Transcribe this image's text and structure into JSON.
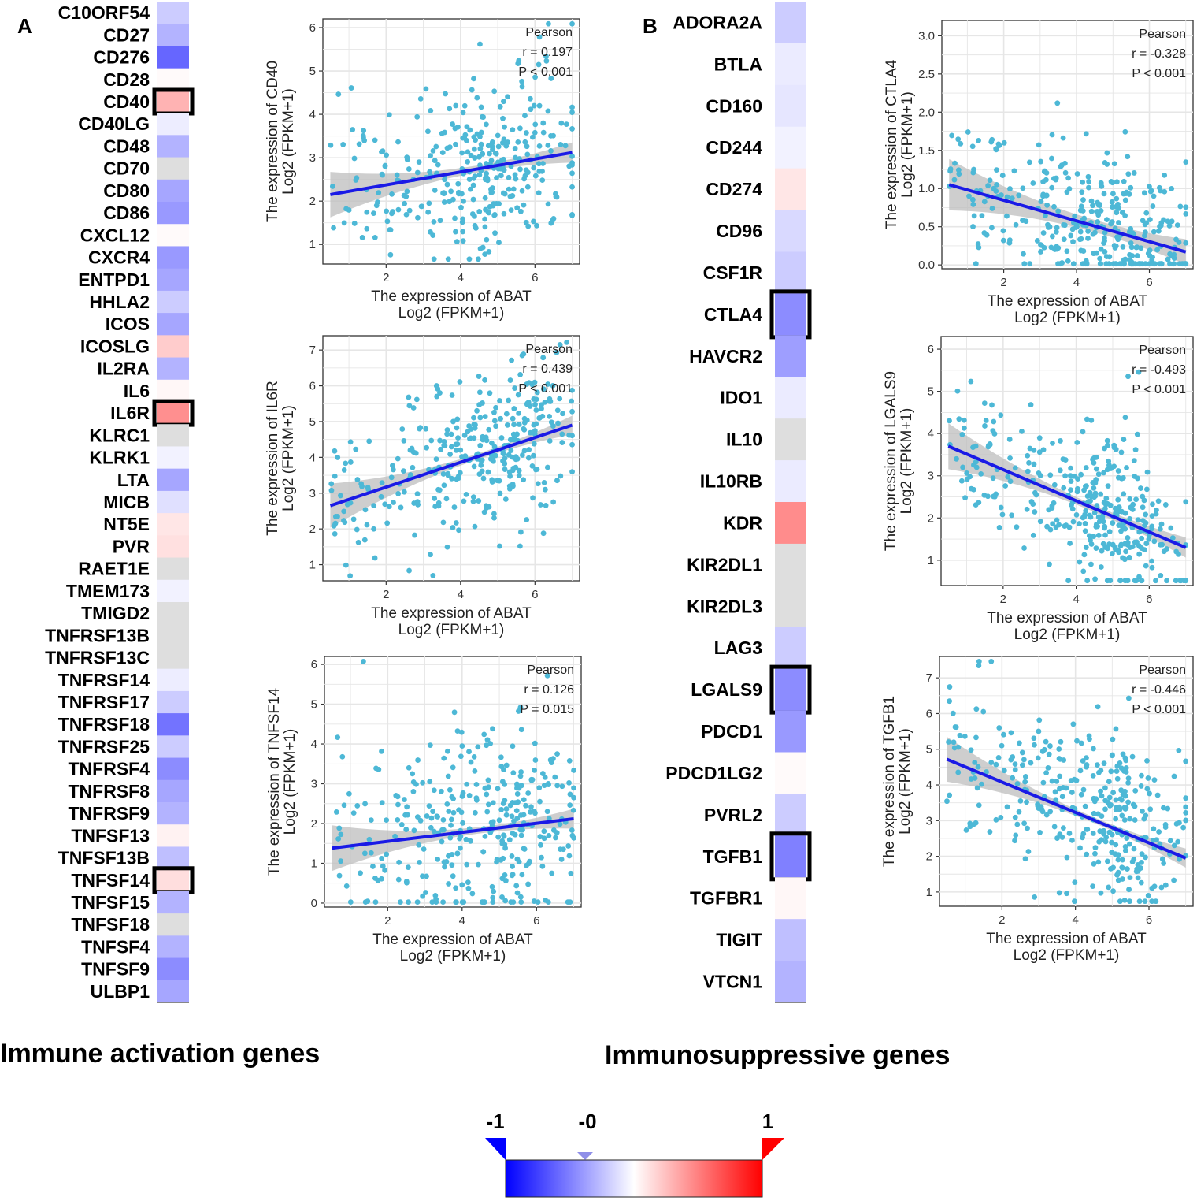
{
  "panel_a": {
    "letter": "A",
    "section_title": "Immune activation genes",
    "heatmap": {
      "genes": [
        "C10ORF54",
        "CD27",
        "CD276",
        "CD28",
        "CD40",
        "CD40LG",
        "CD48",
        "CD70",
        "CD80",
        "CD86",
        "CXCL12",
        "CXCR4",
        "ENTPD1",
        "HHLA2",
        "ICOS",
        "ICOSLG",
        "IL2RA",
        "IL6",
        "IL6R",
        "KLRC1",
        "KLRK1",
        "LTA",
        "MICB",
        "NT5E",
        "PVR",
        "RAET1E",
        "TMEM173",
        "TMIGD2",
        "TNFRSF13B",
        "TNFRSF13C",
        "TNFRSF14",
        "TNFRSF17",
        "TNFRSF18",
        "TNFRSF25",
        "TNFRSF4",
        "TNFRSF8",
        "TNFRSF9",
        "TNFSF13",
        "TNFSF13B",
        "TNFSF14",
        "TNFSF15",
        "TNFSF18",
        "TNFSF4",
        "TNFSF9",
        "ULBP1"
      ],
      "values": [
        -0.2,
        -0.3,
        -0.6,
        0.02,
        0.3,
        -0.07,
        -0.3,
        0,
        -0.35,
        -0.4,
        0.02,
        -0.4,
        -0.35,
        -0.2,
        -0.35,
        0.2,
        -0.3,
        0.03,
        0.44,
        0,
        -0.05,
        -0.35,
        -0.12,
        0.1,
        0.12,
        0,
        -0.05,
        0,
        0,
        0,
        -0.07,
        -0.2,
        -0.55,
        -0.2,
        -0.45,
        -0.35,
        -0.3,
        0.05,
        -0.25,
        0.13,
        -0.3,
        0,
        -0.3,
        -0.45,
        -0.35
      ],
      "highlighted": [
        "CD40",
        "IL6R",
        "TNFSF14"
      ]
    },
    "scatters": [
      {
        "type": "scatter",
        "gene": "CD40",
        "ylabel": "The expression of CD40",
        "ylabel_sub": "Log2 (FPKM+1)",
        "xlabel": "The expression of ABAT",
        "xlabel_sub": "Log2 (FPKM+1)",
        "method": "Pearson",
        "r_text": "r = 0.197",
        "p_text": "P < 0.001",
        "r": 0.197,
        "xlim": [
          0.3,
          7.2
        ],
        "ylim": [
          0.55,
          6.2
        ],
        "xticks": [
          2,
          4,
          6
        ],
        "yticks": [
          1,
          2,
          3,
          4,
          5,
          6
        ],
        "fit": [
          [
            0.5,
            2.15
          ],
          [
            7.0,
            3.12
          ]
        ],
        "y_center": 2.9,
        "y_sd": 0.95,
        "seed": 11,
        "color": "#4db8d6"
      },
      {
        "type": "scatter",
        "gene": "IL6R",
        "ylabel": "The expression of IL6R",
        "ylabel_sub": "Log2 (FPKM+1)",
        "xlabel": "The expression of ABAT",
        "xlabel_sub": "Log2 (FPKM+1)",
        "method": "Pearson",
        "r_text": "r = 0.439",
        "p_text": "P < 0.001",
        "r": 0.439,
        "xlim": [
          0.3,
          7.2
        ],
        "ylim": [
          0.55,
          7.4
        ],
        "xticks": [
          2,
          4,
          6
        ],
        "yticks": [
          1,
          2,
          3,
          4,
          5,
          6,
          7
        ],
        "fit": [
          [
            0.5,
            2.65
          ],
          [
            7.0,
            4.9
          ]
        ],
        "y_center": 3.9,
        "y_sd": 1.0,
        "seed": 23,
        "color": "#4db8d6"
      },
      {
        "type": "scatter",
        "gene": "TNFSF14",
        "ylabel": "The expression of TNFSF14",
        "ylabel_sub": "Log2 (FPKM+1)",
        "xlabel": "The expression of ABAT",
        "xlabel_sub": "Log2 (FPKM+1)",
        "method": "Pearson",
        "r_text": "r = 0.126",
        "p_text": "P = 0.015",
        "r": 0.126,
        "xlim": [
          0.3,
          7.2
        ],
        "ylim": [
          -0.1,
          6.2
        ],
        "xticks": [
          2,
          4,
          6
        ],
        "yticks": [
          0,
          1,
          2,
          3,
          4,
          5,
          6
        ],
        "fit": [
          [
            0.5,
            1.38
          ],
          [
            7.0,
            2.12
          ]
        ],
        "y_center": 1.8,
        "y_sd": 1.2,
        "seed": 37,
        "color": "#4db8d6"
      }
    ]
  },
  "panel_b": {
    "letter": "B",
    "section_title": "Immunosuppressive genes",
    "heatmap": {
      "genes": [
        "ADORA2A",
        "BTLA",
        "CD160",
        "CD244",
        "CD274",
        "CD96",
        "CSF1R",
        "CTLA4",
        "HAVCR2",
        "IDO1",
        "IL10",
        "IL10RB",
        "KDR",
        "KIR2DL1",
        "KIR2DL3",
        "LAG3",
        "LGALS9",
        "PDCD1",
        "PDCD1LG2",
        "PVRL2",
        "TGFB1",
        "TGFBR1",
        "TIGIT",
        "VTCN1"
      ],
      "values": [
        -0.2,
        -0.08,
        -0.1,
        -0.05,
        0.1,
        -0.15,
        -0.2,
        -0.45,
        -0.38,
        -0.08,
        0,
        -0.08,
        0.45,
        0,
        0,
        -0.2,
        -0.45,
        -0.4,
        0.02,
        -0.2,
        -0.5,
        0.03,
        -0.25,
        -0.3
      ],
      "highlighted": [
        "CTLA4",
        "LGALS9",
        "TGFB1"
      ]
    },
    "scatters": [
      {
        "type": "scatter",
        "gene": "CTLA4",
        "ylabel": "The expression of CTLA4",
        "ylabel_sub": "Log2 (FPKM+1)",
        "xlabel": "The expression of ABAT",
        "xlabel_sub": "Log2 (FPKM+1)",
        "method": "Pearson",
        "r_text": "r = -0.328",
        "p_text": "P < 0.001",
        "r": -0.328,
        "xlim": [
          0.3,
          7.2
        ],
        "ylim": [
          -0.05,
          3.2
        ],
        "xticks": [
          2,
          4,
          6
        ],
        "yticks": [
          0.0,
          0.5,
          1.0,
          1.5,
          2.0,
          2.5,
          3.0
        ],
        "ytick_labels": [
          "0.0",
          "0.5",
          "1.0",
          "1.5",
          "2.0",
          "2.5",
          "3.0"
        ],
        "fit": [
          [
            0.5,
            1.05
          ],
          [
            7.0,
            0.17
          ]
        ],
        "y_center": 0.45,
        "y_sd": 0.45,
        "seed": 41,
        "color": "#4db8d6"
      },
      {
        "type": "scatter",
        "gene": "LGALS9",
        "ylabel": "The expression of LGALS9",
        "ylabel_sub": "Log2 (FPKM+1)",
        "xlabel": "The expression of ABAT",
        "xlabel_sub": "Log2 (FPKM+1)",
        "method": "Pearson",
        "r_text": "r = -0.493",
        "p_text": "P < 0.001",
        "r": -0.493,
        "xlim": [
          0.3,
          7.2
        ],
        "ylim": [
          0.4,
          6.3
        ],
        "xticks": [
          2,
          4,
          6
        ],
        "yticks": [
          1,
          2,
          3,
          4,
          5,
          6
        ],
        "fit": [
          [
            0.5,
            3.7
          ],
          [
            7.0,
            1.3
          ]
        ],
        "y_center": 2.3,
        "y_sd": 0.9,
        "seed": 53,
        "color": "#4db8d6"
      },
      {
        "type": "scatter",
        "gene": "TGFB1",
        "ylabel": "The expression of TGFB1",
        "ylabel_sub": "Log2 (FPKM+1)",
        "xlabel": "The expression of ABAT",
        "xlabel_sub": "Log2 (FPKM+1)",
        "method": "Pearson",
        "r_text": "r = -0.446",
        "p_text": "P < 0.001",
        "r": -0.446,
        "xlim": [
          0.3,
          7.2
        ],
        "ylim": [
          0.6,
          7.6
        ],
        "xticks": [
          2,
          4,
          6
        ],
        "yticks": [
          1,
          2,
          3,
          4,
          5,
          6,
          7
        ],
        "fit": [
          [
            0.5,
            4.72
          ],
          [
            7.0,
            1.95
          ]
        ],
        "y_center": 3.0,
        "y_sd": 1.05,
        "seed": 67,
        "color": "#4db8d6"
      }
    ]
  },
  "colorbar": {
    "labels": [
      "-1",
      "-0",
      "1"
    ],
    "low_color": "#0000ff",
    "mid_color": "#ffffff",
    "high_color": "#ff0000"
  },
  "colors": {
    "point": "#4db8d6",
    "fit_line": "#1a1ae6",
    "ci_band": "#bdbdbd",
    "grid": "#e6e6e6",
    "highlight_border": "#000000"
  },
  "chart_data": [
    {
      "type": "heatmap",
      "title": "Immune activation genes",
      "categories": [
        "C10ORF54",
        "CD27",
        "CD276",
        "CD28",
        "CD40",
        "CD40LG",
        "CD48",
        "CD70",
        "CD80",
        "CD86",
        "CXCL12",
        "CXCR4",
        "ENTPD1",
        "HHLA2",
        "ICOS",
        "ICOSLG",
        "IL2RA",
        "IL6",
        "IL6R",
        "KLRC1",
        "KLRK1",
        "LTA",
        "MICB",
        "NT5E",
        "PVR",
        "RAET1E",
        "TMEM173",
        "TMIGD2",
        "TNFRSF13B",
        "TNFRSF13C",
        "TNFRSF14",
        "TNFRSF17",
        "TNFRSF18",
        "TNFRSF25",
        "TNFRSF4",
        "TNFRSF8",
        "TNFRSF9",
        "TNFSF13",
        "TNFSF13B",
        "TNFSF14",
        "TNFSF15",
        "TNFSF18",
        "TNFSF4",
        "TNFSF9",
        "ULBP1"
      ],
      "values": [
        -0.2,
        -0.3,
        -0.6,
        0.02,
        0.3,
        -0.07,
        -0.3,
        0,
        -0.35,
        -0.4,
        0.02,
        -0.4,
        -0.35,
        -0.2,
        -0.35,
        0.2,
        -0.3,
        0.03,
        0.44,
        0,
        -0.05,
        -0.35,
        -0.12,
        0.1,
        0.12,
        0,
        -0.05,
        0,
        0,
        0,
        -0.07,
        -0.2,
        -0.55,
        -0.2,
        -0.45,
        -0.35,
        -0.3,
        0.05,
        -0.25,
        0.13,
        -0.3,
        0,
        -0.3,
        -0.45,
        -0.35
      ],
      "range": [
        -1,
        1
      ]
    },
    {
      "type": "heatmap",
      "title": "Immunosuppressive genes",
      "categories": [
        "ADORA2A",
        "BTLA",
        "CD160",
        "CD244",
        "CD274",
        "CD96",
        "CSF1R",
        "CTLA4",
        "HAVCR2",
        "IDO1",
        "IL10",
        "IL10RB",
        "KDR",
        "KIR2DL1",
        "KIR2DL3",
        "LAG3",
        "LGALS9",
        "PDCD1",
        "PDCD1LG2",
        "PVRL2",
        "TGFB1",
        "TGFBR1",
        "TIGIT",
        "VTCN1"
      ],
      "values": [
        -0.2,
        -0.08,
        -0.1,
        -0.05,
        0.1,
        -0.15,
        -0.2,
        -0.45,
        -0.38,
        -0.08,
        0,
        -0.08,
        0.45,
        0,
        0,
        -0.2,
        -0.45,
        -0.4,
        0.02,
        -0.2,
        -0.5,
        0.03,
        -0.25,
        -0.3
      ],
      "range": [
        -1,
        1
      ]
    },
    {
      "type": "scatter",
      "title": "CD40 vs ABAT",
      "r": 0.197,
      "p": "< 0.001",
      "xlim": [
        0.3,
        7.2
      ],
      "ylim": [
        0.55,
        6.2
      ]
    },
    {
      "type": "scatter",
      "title": "IL6R vs ABAT",
      "r": 0.439,
      "p": "< 0.001",
      "xlim": [
        0.3,
        7.2
      ],
      "ylim": [
        0.55,
        7.4
      ]
    },
    {
      "type": "scatter",
      "title": "TNFSF14 vs ABAT",
      "r": 0.126,
      "p": "= 0.015",
      "xlim": [
        0.3,
        7.2
      ],
      "ylim": [
        -0.1,
        6.2
      ]
    },
    {
      "type": "scatter",
      "title": "CTLA4 vs ABAT",
      "r": -0.328,
      "p": "< 0.001",
      "xlim": [
        0.3,
        7.2
      ],
      "ylim": [
        -0.05,
        3.2
      ]
    },
    {
      "type": "scatter",
      "title": "LGALS9 vs ABAT",
      "r": -0.493,
      "p": "< 0.001",
      "xlim": [
        0.3,
        7.2
      ],
      "ylim": [
        0.4,
        6.3
      ]
    },
    {
      "type": "scatter",
      "title": "TGFB1 vs ABAT",
      "r": -0.446,
      "p": "< 0.001",
      "xlim": [
        0.3,
        7.2
      ],
      "ylim": [
        0.6,
        7.6
      ]
    }
  ]
}
